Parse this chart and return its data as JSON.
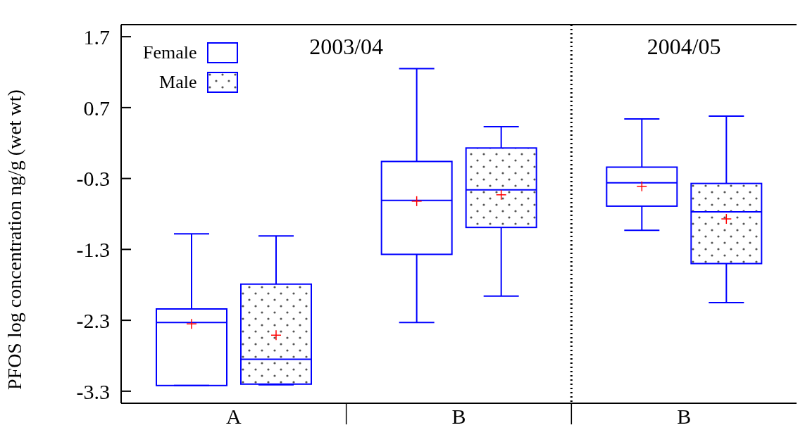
{
  "chart_data": {
    "type": "box",
    "ylabel": "PFOS log concentration ng/g (wet wt)",
    "categories": [
      "A",
      "B",
      "B"
    ],
    "annotations": [
      "2003/04",
      "2004/05"
    ],
    "ylim": [
      -3.47,
      1.87
    ],
    "yticks": [
      1.7,
      0.7,
      -0.3,
      -1.3,
      -2.3,
      -3.3
    ],
    "legend": "top left",
    "series": [
      {
        "name": "Female",
        "color": "#0000ff",
        "boxes": [
          {
            "low": -3.22,
            "q1": -3.22,
            "median": -2.33,
            "q3": -2.14,
            "high": -1.08,
            "mean": -2.35
          },
          {
            "low": -2.33,
            "q1": -1.37,
            "median": -0.61,
            "q3": -0.06,
            "high": 1.25,
            "mean": -0.62
          },
          {
            "low": -1.03,
            "q1": -0.69,
            "median": -0.36,
            "q3": -0.14,
            "high": 0.54,
            "mean": -0.41
          }
        ]
      },
      {
        "name": "Male",
        "color": "#0000ff",
        "boxes": [
          {
            "low": -3.21,
            "q1": -3.2,
            "median": -2.85,
            "q3": -1.79,
            "high": -1.11,
            "mean": -2.51
          },
          {
            "low": -1.96,
            "q1": -0.99,
            "median": -0.46,
            "q3": 0.13,
            "high": 0.43,
            "mean": -0.53
          },
          {
            "low": -2.05,
            "q1": -1.5,
            "median": -0.77,
            "q3": -0.37,
            "high": 0.58,
            "mean": -0.87
          }
        ]
      }
    ]
  }
}
